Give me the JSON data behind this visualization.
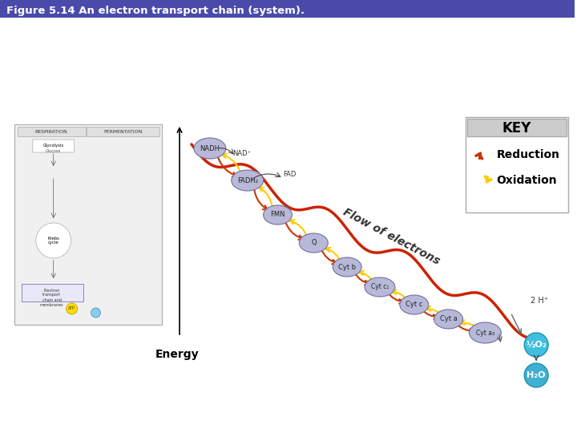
{
  "title": "Figure 5.14 An electron transport chain (system).",
  "title_bar_color": "#4a4aaa",
  "title_bg_color": "#4040a0",
  "background_color": "#ffffff",
  "key_box_color": "#d0d0d0",
  "key_title": "KEY",
  "key_reduction": "Reduction",
  "key_oxidation": "Oxidation",
  "reduction_arrow_color": "#cc3300",
  "oxidation_arrow_color": "#ffcc00",
  "energy_label": "Energy",
  "flow_label": "Flow of electrons",
  "wave_color": "#cc2200",
  "ellipse_color": "#b8b8d8",
  "molecule_labels": [
    "NADH",
    "FADH₂",
    "FMN",
    "Q",
    "Cyt b",
    "Cyt c₁",
    "Cyt c",
    "Cyt a",
    "Cyt a₃"
  ],
  "top_labels": [
    "NAD⁺",
    "FAD"
  ],
  "final_labels": [
    "2 H⁺",
    "½O₂",
    "H₂O"
  ],
  "o2_color": "#40c0e0",
  "h2o_color": "#40b0d0",
  "nadh_color": "#9090c0",
  "fadh2_color": "#9090c0"
}
